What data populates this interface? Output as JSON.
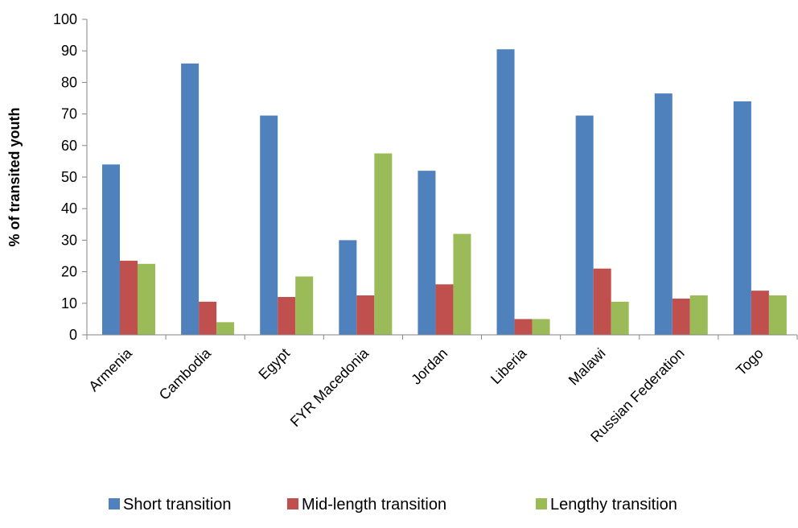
{
  "chart_data": {
    "type": "bar",
    "title": "",
    "xlabel": "",
    "ylabel": "% of transited youth",
    "ylim": [
      0,
      100
    ],
    "yticks": [
      0,
      10,
      20,
      30,
      40,
      50,
      60,
      70,
      80,
      90,
      100
    ],
    "grid": false,
    "legend_position": "bottom",
    "categories": [
      "Armenia",
      "Cambodia",
      "Egypt",
      "FYR Macedonia",
      "Jordan",
      "Liberia",
      "Malawi",
      "Russian Federation",
      "Togo"
    ],
    "series": [
      {
        "name": "Short transition",
        "color": "#4f81bd",
        "values": [
          54,
          86,
          69.5,
          30,
          52,
          90.5,
          69.5,
          76.5,
          74
        ]
      },
      {
        "name": "Mid-length transition",
        "color": "#c0504d",
        "values": [
          23.5,
          10.5,
          12,
          12.5,
          16,
          5,
          21,
          11.5,
          14
        ]
      },
      {
        "name": "Lengthy transition",
        "color": "#9bbb59",
        "values": [
          22.5,
          4,
          18.5,
          57.5,
          32,
          5,
          10.5,
          12.5,
          12.5
        ]
      }
    ]
  }
}
